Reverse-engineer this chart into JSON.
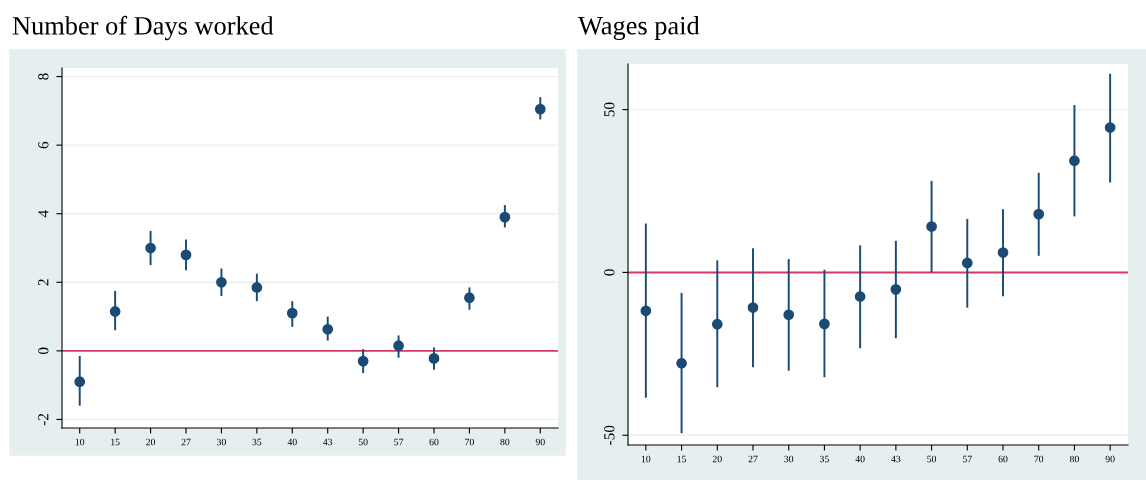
{
  "chart_data": [
    {
      "type": "scatter",
      "title": "Number of Days worked",
      "categories": [
        "10",
        "15",
        "20",
        "27",
        "30",
        "35",
        "40",
        "43",
        "50",
        "57",
        "60",
        "70",
        "80",
        "90"
      ],
      "series": [
        {
          "color": "#1b4a74",
          "values": [
            -0.9,
            1.15,
            3.0,
            2.8,
            2.0,
            1.85,
            1.1,
            0.63,
            -0.3,
            0.15,
            -0.22,
            1.55,
            3.9,
            7.05
          ],
          "errors": [
            [
              -1.6,
              -0.15
            ],
            [
              0.6,
              1.75
            ],
            [
              2.5,
              3.5
            ],
            [
              2.35,
              3.25
            ],
            [
              1.6,
              2.4
            ],
            [
              1.45,
              2.25
            ],
            [
              0.7,
              1.45
            ],
            [
              0.3,
              1.0
            ],
            [
              -0.65,
              0.05
            ],
            [
              -0.2,
              0.45
            ],
            [
              -0.55,
              0.1
            ],
            [
              1.2,
              1.85
            ],
            [
              3.6,
              4.25
            ],
            [
              6.75,
              7.4
            ]
          ]
        }
      ],
      "ylim": [
        -2.25,
        8.25
      ],
      "yticks": [
        -2,
        0,
        2,
        4,
        6,
        8
      ],
      "grid": "y",
      "marker": "circle",
      "ref_lines": [
        {
          "axis": "y",
          "value": 0,
          "color": "#d6386a"
        }
      ]
    },
    {
      "type": "scatter",
      "title": "Wages paid",
      "categories": [
        "10",
        "15",
        "20",
        "27",
        "30",
        "35",
        "40",
        "43",
        "50",
        "57",
        "60",
        "70",
        "80",
        "90"
      ],
      "series": [
        {
          "color": "#1b4a74",
          "values": [
            -11.8,
            -27.9,
            -15.9,
            -10.8,
            -13,
            -15.8,
            -7.4,
            -5.2,
            14.1,
            2.9,
            6.1,
            17.9,
            34.3,
            44.5
          ],
          "errors": [
            [
              -38.5,
              15
            ],
            [
              -49.4,
              -6.3
            ],
            [
              -35.3,
              3.7
            ],
            [
              -29.1,
              7.4
            ],
            [
              -30.2,
              4.1
            ],
            [
              -32.2,
              0.8
            ],
            [
              -23.3,
              8.3
            ],
            [
              -20.2,
              9.7
            ],
            [
              0,
              28.1
            ],
            [
              -10.8,
              16.4
            ],
            [
              -7.3,
              19.4
            ],
            [
              5.1,
              30.6
            ],
            [
              17.2,
              51.4
            ],
            [
              27.6,
              61
            ]
          ]
        }
      ],
      "ylim": [
        -53,
        64
      ],
      "yticks": [
        -50,
        0,
        50
      ],
      "grid": "y",
      "marker": "circle",
      "ref_lines": [
        {
          "axis": "y",
          "value": 0,
          "color": "#d6386a"
        }
      ]
    }
  ]
}
